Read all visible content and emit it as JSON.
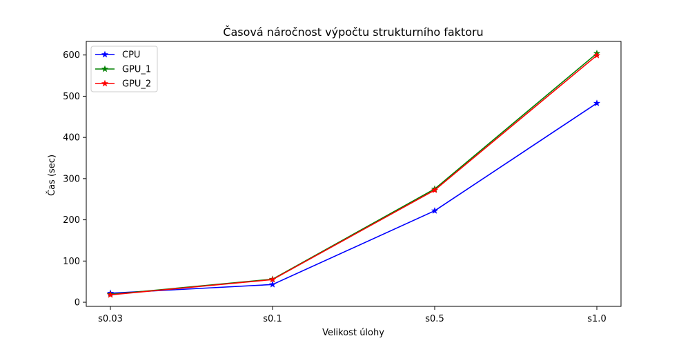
{
  "chart_data": {
    "type": "line",
    "title": "Časová náročnost výpočtu strukturního faktoru",
    "xlabel": "Velikost úlohy",
    "ylabel": "Čas (sec)",
    "categories": [
      "s0.03",
      "s0.1",
      "s0.5",
      "s1.0"
    ],
    "ylim": [
      -10,
      633
    ],
    "yticks": [
      0,
      100,
      200,
      300,
      400,
      500,
      600
    ],
    "grid": false,
    "legend_position": "top-left",
    "marker": "star",
    "series": [
      {
        "name": "CPU",
        "color": "#0000ff",
        "values": [
          22,
          43,
          222,
          483
        ]
      },
      {
        "name": "GPU_1",
        "color": "#008000",
        "values": [
          19,
          56,
          275,
          604
        ]
      },
      {
        "name": "GPU_2",
        "color": "#ff0000",
        "values": [
          18,
          55,
          272,
          599
        ]
      }
    ]
  }
}
